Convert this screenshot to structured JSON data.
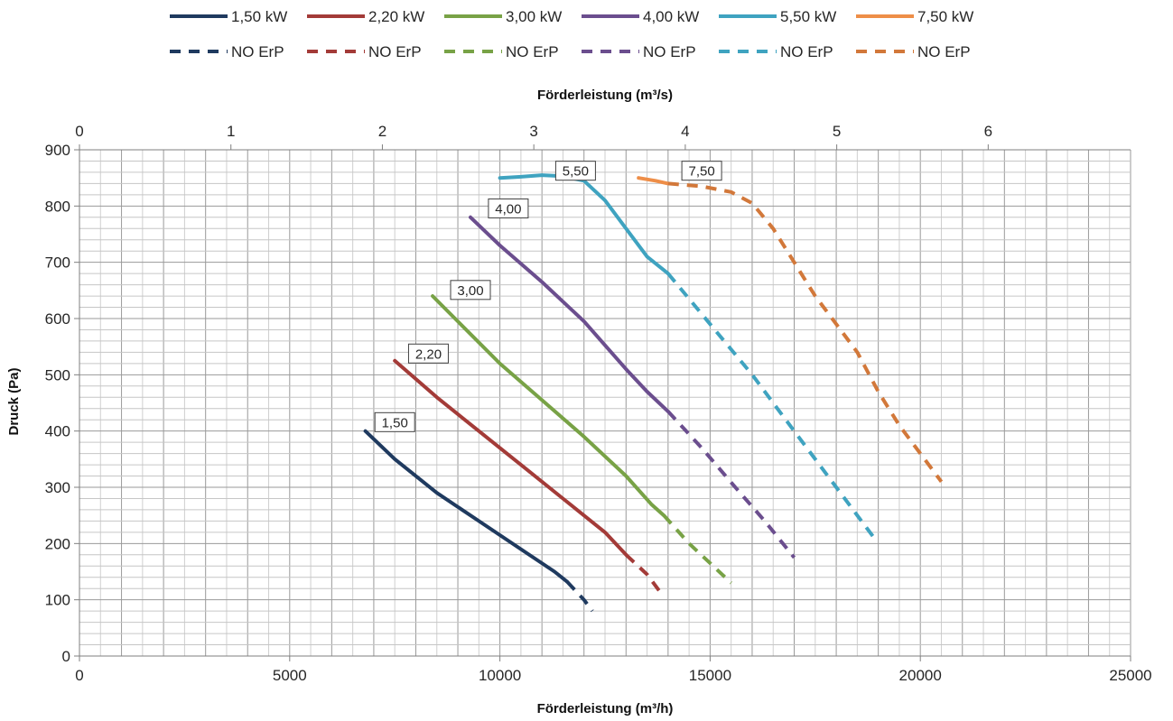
{
  "chart_data": {
    "type": "line",
    "xlabel": "Förderleistung (m³/h)",
    "x2label": "Förderleistung (m³/s)",
    "ylabel": "Druck (Pa)",
    "xlim": [
      0,
      25000
    ],
    "x2lim": [
      0,
      6.94
    ],
    "ylim": [
      0,
      900
    ],
    "x_ticks": [
      0,
      5000,
      10000,
      15000,
      20000,
      25000
    ],
    "x2_ticks": [
      0,
      1,
      2,
      3,
      4,
      5,
      6
    ],
    "y_ticks": [
      0,
      100,
      200,
      300,
      400,
      500,
      600,
      700,
      800,
      900
    ],
    "grid": true,
    "legend_position": "top",
    "series": [
      {
        "name": "1,50 kW",
        "color": "#1f3a5f",
        "style": "solid",
        "points": [
          [
            6800,
            400
          ],
          [
            7500,
            350
          ],
          [
            8500,
            290
          ],
          [
            9500,
            240
          ],
          [
            10500,
            190
          ],
          [
            11300,
            150
          ],
          [
            11600,
            132
          ]
        ]
      },
      {
        "name": "NO ErP",
        "color": "#1f3a5f",
        "style": "dashed",
        "points": [
          [
            11600,
            132
          ],
          [
            12000,
            100
          ],
          [
            12200,
            80
          ]
        ]
      },
      {
        "name": "2,20 kW",
        "color": "#a33b38",
        "style": "solid",
        "points": [
          [
            7500,
            525
          ],
          [
            8500,
            460
          ],
          [
            9500,
            400
          ],
          [
            10500,
            340
          ],
          [
            11500,
            280
          ],
          [
            12500,
            220
          ],
          [
            13000,
            180
          ]
        ]
      },
      {
        "name": "NO ErP",
        "color": "#a33b38",
        "style": "dashed",
        "points": [
          [
            13000,
            180
          ],
          [
            13500,
            145
          ],
          [
            13800,
            115
          ]
        ]
      },
      {
        "name": "3,00 kW",
        "color": "#78a246",
        "style": "solid",
        "points": [
          [
            8400,
            640
          ],
          [
            9000,
            595
          ],
          [
            10000,
            520
          ],
          [
            11000,
            455
          ],
          [
            12000,
            390
          ],
          [
            13000,
            320
          ],
          [
            13600,
            270
          ],
          [
            13900,
            250
          ]
        ]
      },
      {
        "name": "NO ErP",
        "color": "#78a246",
        "style": "dashed",
        "points": [
          [
            13900,
            250
          ],
          [
            14500,
            200
          ],
          [
            15000,
            165
          ],
          [
            15500,
            130
          ]
        ]
      },
      {
        "name": "4,00 kW",
        "color": "#6b4e8e",
        "style": "solid",
        "points": [
          [
            9300,
            780
          ],
          [
            10000,
            730
          ],
          [
            11000,
            665
          ],
          [
            12000,
            595
          ],
          [
            13000,
            510
          ],
          [
            13500,
            470
          ],
          [
            14000,
            435
          ]
        ]
      },
      {
        "name": "NO ErP",
        "color": "#6b4e8e",
        "style": "dashed",
        "points": [
          [
            14000,
            435
          ],
          [
            14800,
            370
          ],
          [
            15600,
            300
          ],
          [
            16300,
            240
          ],
          [
            17000,
            175
          ]
        ]
      },
      {
        "name": "5,50 kW",
        "color": "#3fa3c0",
        "style": "solid",
        "points": [
          [
            10000,
            850
          ],
          [
            10500,
            852
          ],
          [
            11000,
            855
          ],
          [
            11500,
            853
          ],
          [
            12000,
            845
          ],
          [
            12500,
            810
          ],
          [
            13000,
            760
          ],
          [
            13500,
            710
          ],
          [
            14000,
            680
          ]
        ]
      },
      {
        "name": "NO ErP",
        "color": "#3fa3c0",
        "style": "dashed",
        "points": [
          [
            14000,
            680
          ],
          [
            15000,
            590
          ],
          [
            16000,
            500
          ],
          [
            17000,
            400
          ],
          [
            18000,
            300
          ],
          [
            18900,
            210
          ]
        ]
      },
      {
        "name": "7,50 kW",
        "color": "#ee8e48",
        "style": "solid",
        "points": [
          [
            13300,
            850
          ],
          [
            13700,
            845
          ],
          [
            14000,
            840
          ]
        ]
      },
      {
        "name": "NO ErP",
        "color": "#d2783a",
        "style": "dashed",
        "points": [
          [
            14000,
            840
          ],
          [
            14800,
            835
          ],
          [
            15500,
            825
          ],
          [
            16000,
            805
          ],
          [
            16500,
            760
          ],
          [
            17000,
            700
          ],
          [
            17500,
            640
          ],
          [
            18000,
            590
          ],
          [
            18500,
            540
          ],
          [
            19000,
            470
          ],
          [
            19500,
            410
          ],
          [
            20000,
            360
          ],
          [
            20500,
            310
          ]
        ]
      }
    ],
    "annotations": [
      {
        "text": "1,50",
        "x": 7500,
        "y": 415
      },
      {
        "text": "2,20",
        "x": 8300,
        "y": 537
      },
      {
        "text": "3,00",
        "x": 9300,
        "y": 650
      },
      {
        "text": "4,00",
        "x": 10200,
        "y": 795
      },
      {
        "text": "5,50",
        "x": 11800,
        "y": 862
      },
      {
        "text": "7,50",
        "x": 14800,
        "y": 862
      }
    ]
  }
}
